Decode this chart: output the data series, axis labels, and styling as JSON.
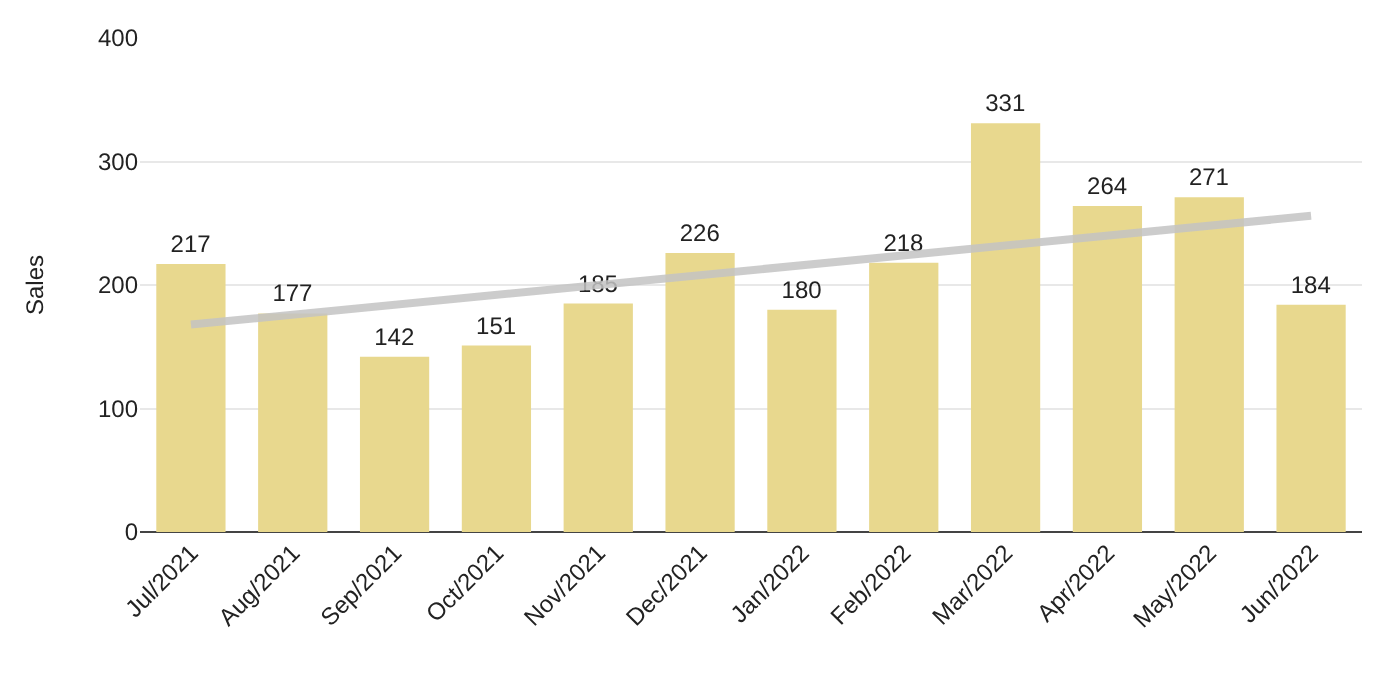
{
  "chart_data": {
    "type": "bar",
    "ylabel": "Sales",
    "categories": [
      "Jul/2021",
      "Aug/2021",
      "Sep/2021",
      "Oct/2021",
      "Nov/2021",
      "Dec/2021",
      "Jan/2022",
      "Feb/2022",
      "Mar/2022",
      "Apr/2022",
      "May/2022",
      "Jun/2022"
    ],
    "series": [
      {
        "color": "#e8d88e",
        "values": [
          217,
          177,
          142,
          151,
          185,
          226,
          180,
          218,
          331,
          264,
          271,
          184
        ],
        "value_labels": [
          "217",
          "177",
          "142",
          "151",
          "185",
          "226",
          "180",
          "218",
          "331",
          "264",
          "271",
          "184"
        ]
      },
      {
        "type": "line",
        "color": "#c4c4c4",
        "x": [
          "Jul/2021",
          "Jun/2022"
        ],
        "values": [
          168,
          256
        ]
      }
    ],
    "ylim": [
      0,
      400
    ],
    "yticks": [
      0,
      100,
      200,
      300,
      400
    ],
    "grid": "y"
  }
}
